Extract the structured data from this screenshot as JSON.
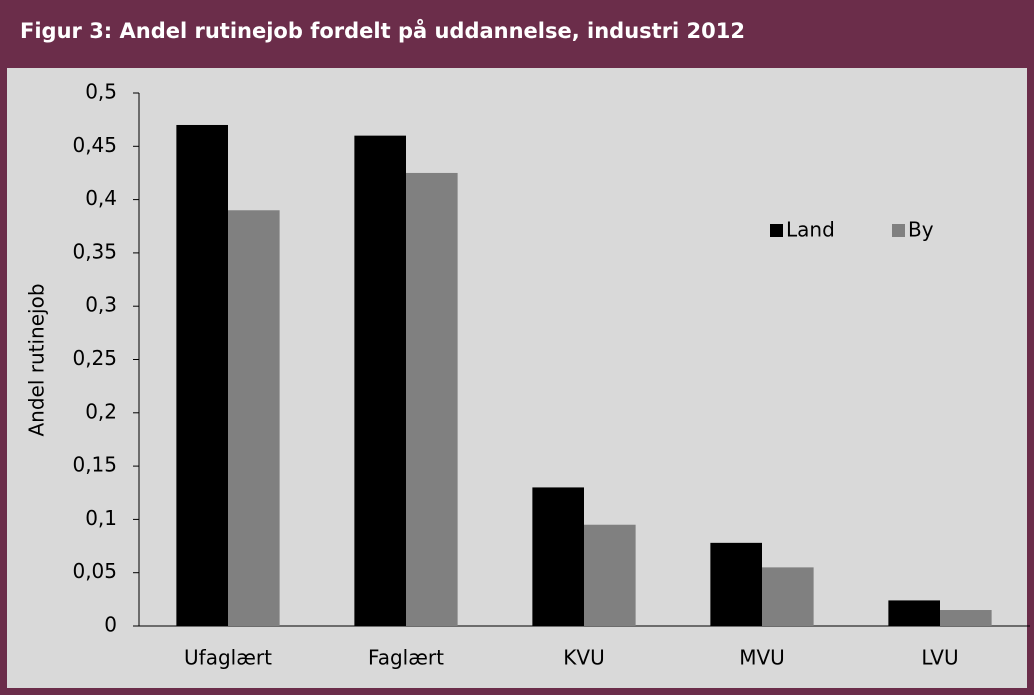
{
  "chart_data": {
    "type": "bar",
    "title": "Figur 3: Andel rutinejob fordelt på uddannelse, industri 2012",
    "y_label": "Andel rutinejob",
    "categories": [
      "Ufaglært",
      "Faglært",
      "KVU",
      "MVU",
      "LVU"
    ],
    "series": [
      {
        "name": "Land",
        "color": "#000000",
        "values": [
          0.47,
          0.46,
          0.13,
          0.078,
          0.024
        ]
      },
      {
        "name": "By",
        "color": "#808080",
        "values": [
          0.39,
          0.425,
          0.095,
          0.055,
          0.015
        ]
      }
    ],
    "ylim": [
      0,
      0.5
    ],
    "yticks": [
      0,
      {
        "value": 0.05,
        "label": "0,05"
      },
      {
        "value": 0.1,
        "label": "0,1"
      },
      {
        "value": 0.15,
        "label": "0,15"
      },
      {
        "value": 0.2,
        "label": "0,2"
      },
      {
        "value": 0.25,
        "label": "0,25"
      },
      {
        "value": 0.3,
        "label": "0,3"
      },
      {
        "value": 0.35,
        "label": "0,35"
      },
      {
        "value": 0.4,
        "label": "0,4"
      },
      {
        "value": 0.45,
        "label": "0,45"
      },
      {
        "value": 0.5,
        "label": "0,5"
      }
    ],
    "legend": "right"
  }
}
